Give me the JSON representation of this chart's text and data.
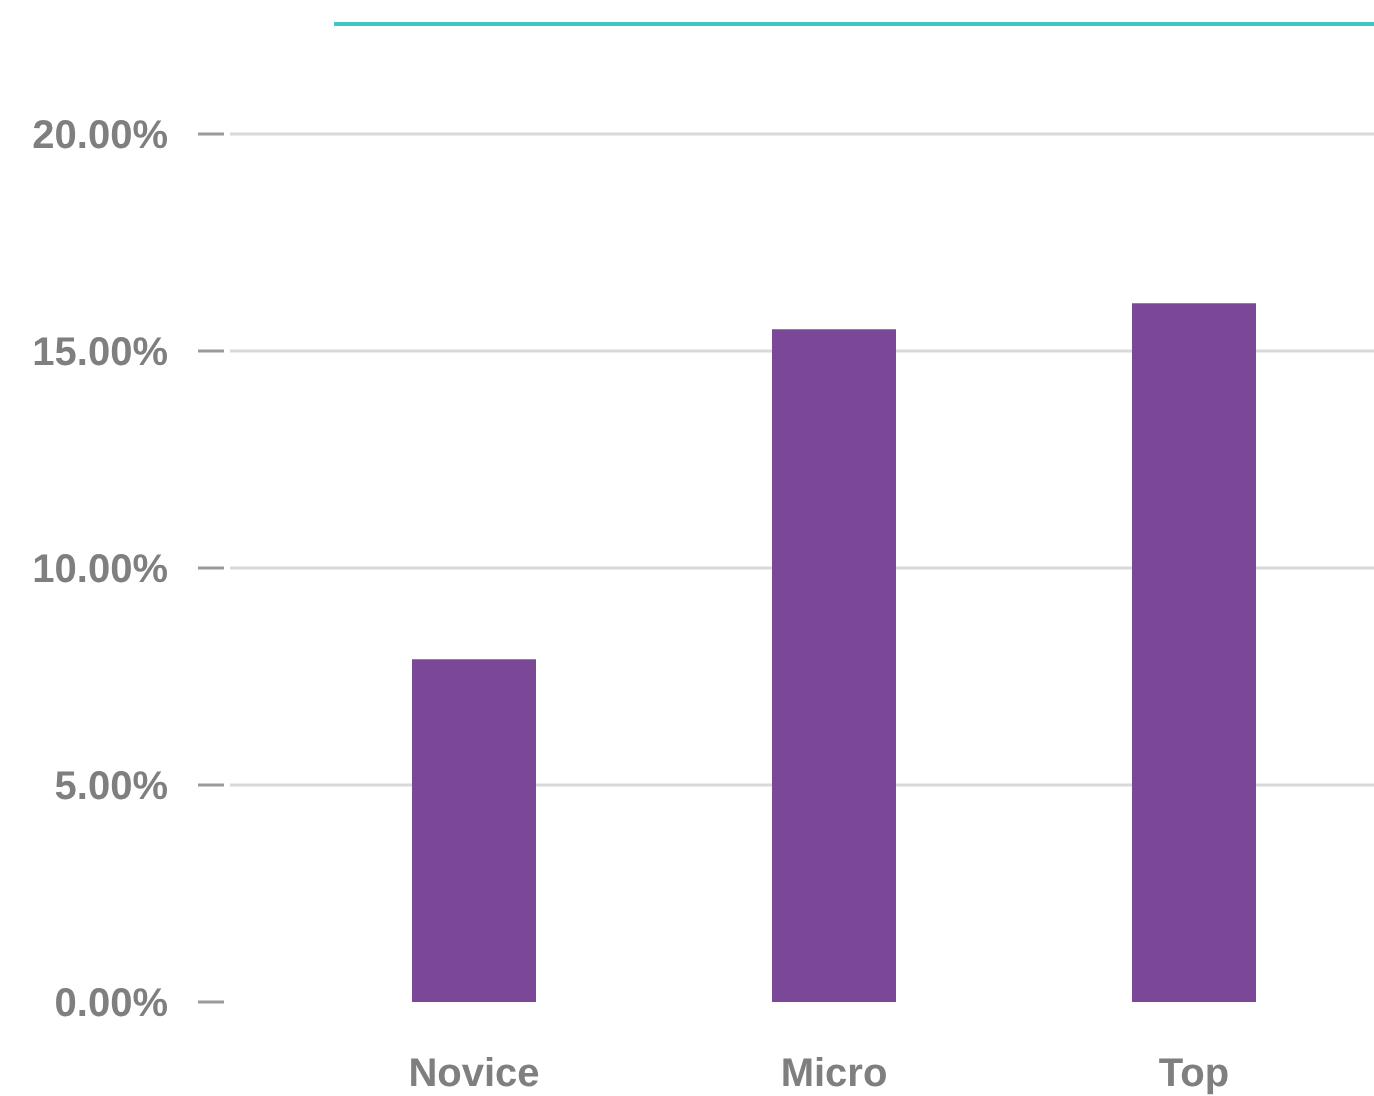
{
  "chart_data": {
    "type": "bar",
    "categories": [
      "Novice",
      "Micro",
      "Top"
    ],
    "values": [
      7.9,
      15.5,
      16.1
    ],
    "color": "#7b4898",
    "ylim": [
      0,
      20
    ],
    "yticks": [
      {
        "value": 0,
        "label": "0.00%"
      },
      {
        "value": 5,
        "label": "5.00%"
      },
      {
        "value": 10,
        "label": "10.00%"
      },
      {
        "value": 15,
        "label": "15.00%"
      },
      {
        "value": 20,
        "label": "20.00%"
      }
    ],
    "grid": "y"
  }
}
